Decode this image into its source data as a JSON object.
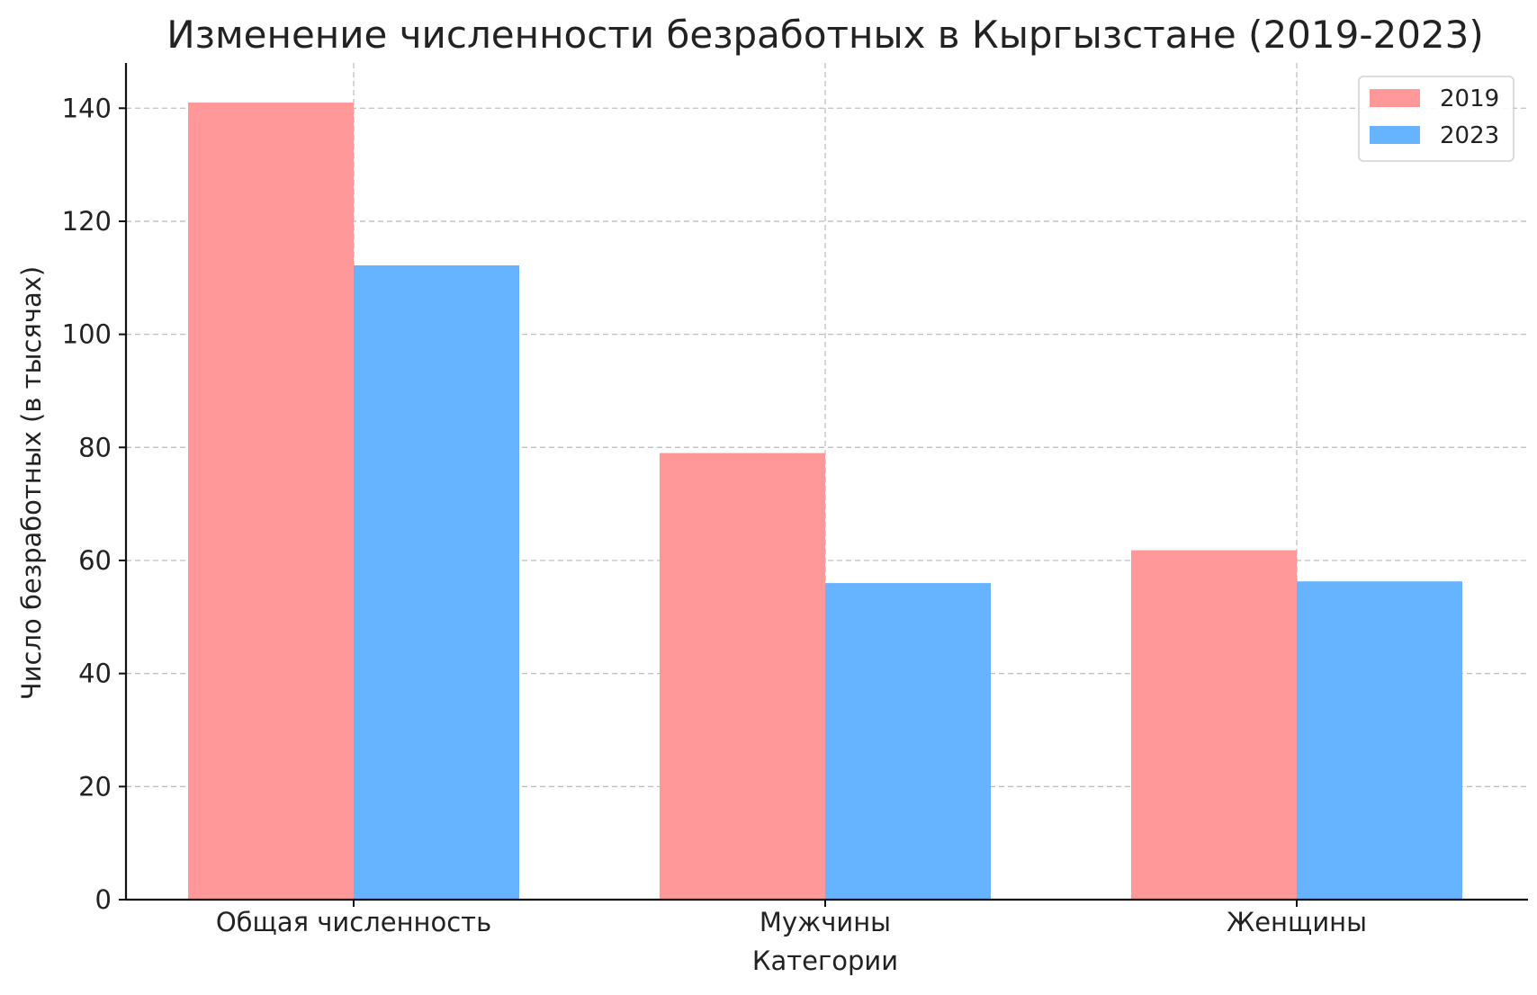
{
  "chart_data": {
    "type": "bar",
    "title": "Изменение численности безработных в Кыргызстане (2019-2023)",
    "xlabel": "Категории",
    "ylabel": "Число безработных (в тысячах)",
    "categories": [
      "Общая численность",
      "Мужчины",
      "Женщины"
    ],
    "series": [
      {
        "name": "2019",
        "values": [
          141.0,
          79.0,
          61.8
        ],
        "color": "#ff9999"
      },
      {
        "name": "2023",
        "values": [
          112.2,
          56.0,
          56.3
        ],
        "color": "#66b3ff"
      }
    ],
    "ylim": [
      0,
      148
    ],
    "yticks": [
      "0",
      "20",
      "40",
      "60",
      "80",
      "100",
      "120",
      "140"
    ],
    "grid": true,
    "legend_position": "top-right"
  }
}
